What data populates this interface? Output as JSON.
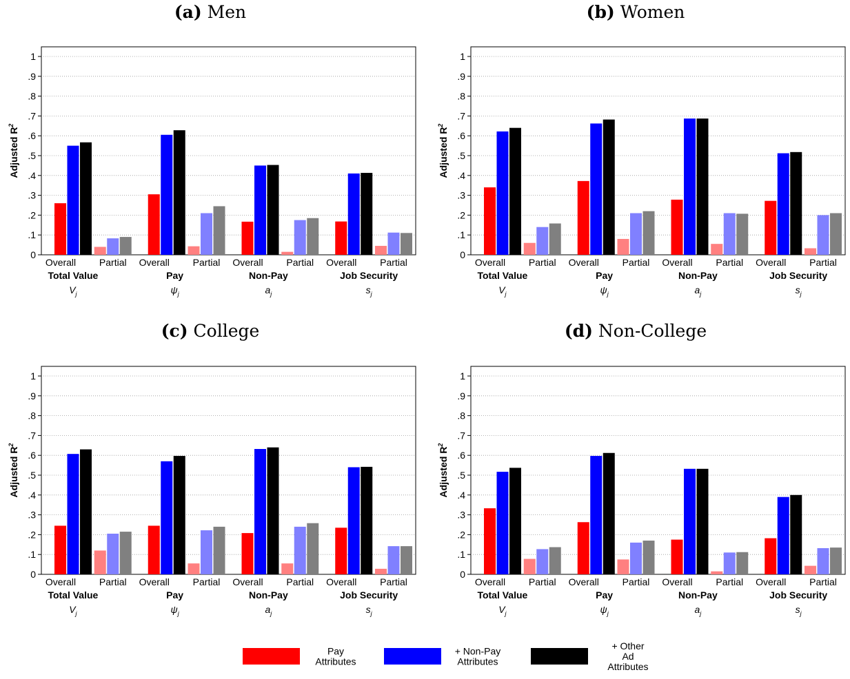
{
  "ylabel_main": "Adjusted R",
  "ylabel_sup": "2",
  "yticks": [
    "0",
    ".1",
    ".2",
    ".3",
    ".4",
    ".5",
    ".6",
    ".7",
    ".8",
    ".9",
    "1"
  ],
  "groups": [
    {
      "name": "Total Value",
      "symbol": "V",
      "sub": "j"
    },
    {
      "name": "Pay",
      "symbol": "ψ",
      "sub": "j"
    },
    {
      "name": "Non-Pay",
      "symbol": "a",
      "sub": "j"
    },
    {
      "name": "Job Security",
      "symbol": "s",
      "sub": "j"
    }
  ],
  "subcategories": [
    "Overall",
    "Partial"
  ],
  "legend": [
    {
      "label_lines": [
        "Pay",
        "Attributes"
      ],
      "color": "#ff0000"
    },
    {
      "label_lines": [
        "+ Non-Pay",
        "Attributes"
      ],
      "color": "#0000ff"
    },
    {
      "label_lines": [
        "+ Other",
        "Ad",
        "Attributes"
      ],
      "color": "#000000"
    }
  ],
  "colors": {
    "overall": [
      "#ff0000",
      "#0000ff",
      "#000000"
    ],
    "partial": [
      "#ff8080",
      "#8080ff",
      "#808080"
    ]
  },
  "chart_data": [
    {
      "type": "bar",
      "label": "(a)",
      "title": "Men",
      "ylim": [
        0,
        1
      ],
      "grid": true,
      "categories": [
        "Total Value Overall",
        "Total Value Partial",
        "Pay Overall",
        "Pay Partial",
        "Non-Pay Overall",
        "Non-Pay Partial",
        "Job Security Overall",
        "Job Security Partial"
      ],
      "series": [
        {
          "name": "Pay Attributes",
          "values": [
            0.26,
            0.04,
            0.305,
            0.043,
            0.167,
            0.015,
            0.168,
            0.045
          ]
        },
        {
          "name": "+ Non-Pay Attributes",
          "values": [
            0.55,
            0.083,
            0.605,
            0.21,
            0.45,
            0.175,
            0.41,
            0.112
          ]
        },
        {
          "name": "+ Other Ad Attributes",
          "values": [
            0.567,
            0.09,
            0.628,
            0.245,
            0.453,
            0.185,
            0.413,
            0.11
          ]
        }
      ]
    },
    {
      "type": "bar",
      "label": "(b)",
      "title": "Women",
      "ylim": [
        0,
        1
      ],
      "grid": true,
      "categories": [
        "Total Value Overall",
        "Total Value Partial",
        "Pay Overall",
        "Pay Partial",
        "Non-Pay Overall",
        "Non-Pay Partial",
        "Job Security Overall",
        "Job Security Partial"
      ],
      "series": [
        {
          "name": "Pay Attributes",
          "values": [
            0.34,
            0.06,
            0.372,
            0.08,
            0.278,
            0.055,
            0.272,
            0.033
          ]
        },
        {
          "name": "+ Non-Pay Attributes",
          "values": [
            0.622,
            0.14,
            0.662,
            0.21,
            0.687,
            0.21,
            0.512,
            0.2
          ]
        },
        {
          "name": "+ Other Ad Attributes",
          "values": [
            0.64,
            0.158,
            0.682,
            0.22,
            0.687,
            0.207,
            0.518,
            0.21
          ]
        }
      ]
    },
    {
      "type": "bar",
      "label": "(c)",
      "title": "College",
      "ylim": [
        0,
        1
      ],
      "grid": true,
      "categories": [
        "Total Value Overall",
        "Total Value Partial",
        "Pay Overall",
        "Pay Partial",
        "Non-Pay Overall",
        "Non-Pay Partial",
        "Job Security Overall",
        "Job Security Partial"
      ],
      "series": [
        {
          "name": "Pay Attributes",
          "values": [
            0.245,
            0.12,
            0.245,
            0.055,
            0.208,
            0.055,
            0.235,
            0.028
          ]
        },
        {
          "name": "+ Non-Pay Attributes",
          "values": [
            0.607,
            0.205,
            0.57,
            0.222,
            0.632,
            0.24,
            0.54,
            0.142
          ]
        },
        {
          "name": "+ Other Ad Attributes",
          "values": [
            0.63,
            0.215,
            0.597,
            0.24,
            0.64,
            0.258,
            0.542,
            0.142
          ]
        }
      ]
    },
    {
      "type": "bar",
      "label": "(d)",
      "title": "Non-College",
      "ylim": [
        0,
        1
      ],
      "grid": true,
      "categories": [
        "Total Value Overall",
        "Total Value Partial",
        "Pay Overall",
        "Pay Partial",
        "Non-Pay Overall",
        "Non-Pay Partial",
        "Job Security Overall",
        "Job Security Partial"
      ],
      "series": [
        {
          "name": "Pay Attributes",
          "values": [
            0.333,
            0.078,
            0.263,
            0.075,
            0.175,
            0.015,
            0.182,
            0.043
          ]
        },
        {
          "name": "+ Non-Pay Attributes",
          "values": [
            0.517,
            0.127,
            0.597,
            0.16,
            0.532,
            0.11,
            0.39,
            0.132
          ]
        },
        {
          "name": "+ Other Ad Attributes",
          "values": [
            0.537,
            0.137,
            0.612,
            0.17,
            0.532,
            0.112,
            0.4,
            0.135
          ]
        }
      ]
    }
  ]
}
